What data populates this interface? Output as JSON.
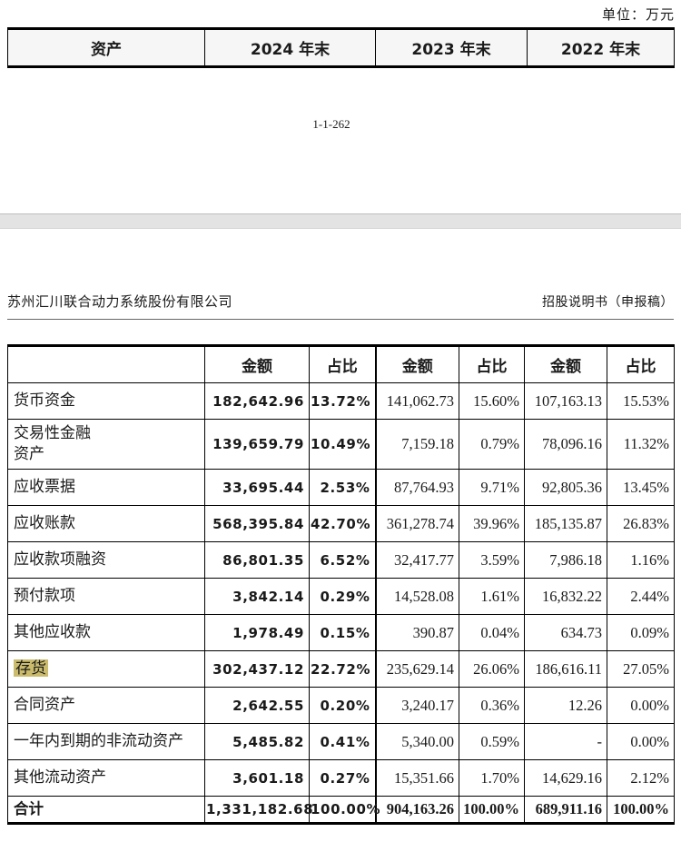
{
  "page1": {
    "unit_label": "单位：万元",
    "page_number": "1-1-262",
    "assets_table": {
      "columns": [
        "资产",
        "2024 年末",
        "2023 年末",
        "2022 年末"
      ]
    }
  },
  "page2": {
    "company_name": "苏州汇川联合动力系统股份有限公司",
    "doc_title": "招股说明书（申报稿）",
    "detail_table": {
      "header": [
        "",
        "金额",
        "占比",
        "金额",
        "占比",
        "金额",
        "占比"
      ],
      "highlight_color": "#cbbc6d",
      "rows": [
        {
          "label": "货币资金",
          "values": [
            "182,642.96",
            "13.72%",
            "141,062.73",
            "15.60%",
            "107,163.13",
            "15.53%"
          ]
        },
        {
          "label": "交易性金融\n资产",
          "tall": true,
          "values": [
            "139,659.79",
            "10.49%",
            "7,159.18",
            "0.79%",
            "78,096.16",
            "11.32%"
          ]
        },
        {
          "label": "应收票据",
          "values": [
            "33,695.44",
            "2.53%",
            "87,764.93",
            "9.71%",
            "92,805.36",
            "13.45%"
          ]
        },
        {
          "label": "应收账款",
          "values": [
            "568,395.84",
            "42.70%",
            "361,278.74",
            "39.96%",
            "185,135.87",
            "26.83%"
          ]
        },
        {
          "label": "应收款项融资",
          "values": [
            "86,801.35",
            "6.52%",
            "32,417.77",
            "3.59%",
            "7,986.18",
            "1.16%"
          ]
        },
        {
          "label": "预付款项",
          "values": [
            "3,842.14",
            "0.29%",
            "14,528.08",
            "1.61%",
            "16,832.22",
            "2.44%"
          ]
        },
        {
          "label": "其他应收款",
          "values": [
            "1,978.49",
            "0.15%",
            "390.87",
            "0.04%",
            "634.73",
            "0.09%"
          ]
        },
        {
          "label": "存货",
          "highlight": true,
          "values": [
            "302,437.12",
            "22.72%",
            "235,629.14",
            "26.06%",
            "186,616.11",
            "27.05%"
          ]
        },
        {
          "label": "合同资产",
          "values": [
            "2,642.55",
            "0.20%",
            "3,240.17",
            "0.36%",
            "12.26",
            "0.00%"
          ]
        },
        {
          "label": "一年内到期的非流动资产",
          "values": [
            "5,485.82",
            "0.41%",
            "5,340.00",
            "0.59%",
            "-",
            "0.00%"
          ]
        },
        {
          "label": "其他流动资产",
          "values": [
            "3,601.18",
            "0.27%",
            "15,351.66",
            "1.70%",
            "14,629.16",
            "2.12%"
          ]
        },
        {
          "label": "合计",
          "total": true,
          "values": [
            "1,331,182.68",
            "100.00%",
            "904,163.26",
            "100.00%",
            "689,911.16",
            "100.00%"
          ]
        }
      ]
    }
  }
}
